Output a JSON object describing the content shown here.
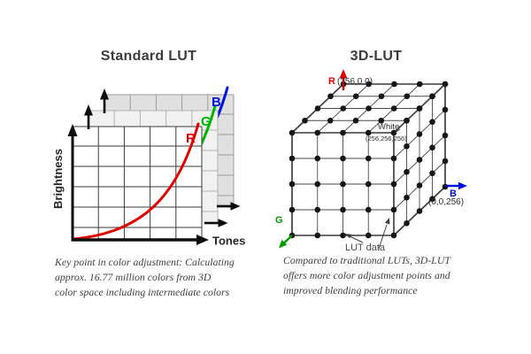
{
  "figure": {
    "left": {
      "title": "Standard LUT",
      "y_axis": "Brightness",
      "x_axis": "Tones",
      "curves": [
        {
          "label": "R",
          "color": "#e10000"
        },
        {
          "label": "G",
          "color": "#00b400"
        },
        {
          "label": "B",
          "color": "#0010e0"
        }
      ],
      "caption_lines": [
        "Key point in color adjustment: Calculating",
        "approx. 16.77 million colors from 3D",
        "color space including intermediate colors"
      ]
    },
    "right": {
      "title": "3D-LUT",
      "axes": {
        "r": {
          "label": "R",
          "coord": "(256,0,0)",
          "color": "#e10000"
        },
        "g": {
          "label": "G",
          "color": "#009a00"
        },
        "b": {
          "label": "B",
          "coord": "(0,0,256)",
          "color": "#0010e0"
        }
      },
      "white_point": {
        "label": "White",
        "coord": "(256,256,256)"
      },
      "lut_data_label": "LUT data",
      "caption_lines": [
        "Compared to traditional LUTs, 3D-LUT",
        "offers more color adjustment points and",
        "improved blending performance"
      ]
    }
  }
}
